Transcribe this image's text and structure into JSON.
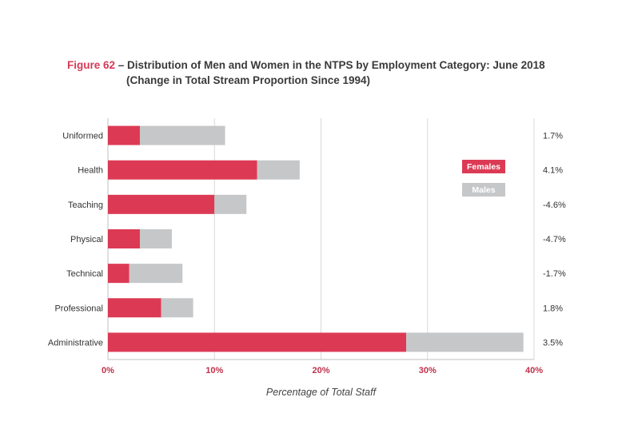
{
  "figure": {
    "number": "Figure 62",
    "title_line1": " – Distribution of Men and Women in the NTPS by Employment Category: June 2018",
    "title_line2": "(Change in Total Stream Proportion Since 1994)"
  },
  "chart_data": {
    "type": "bar",
    "orientation": "horizontal",
    "stacked": true,
    "categories": [
      "Uniformed",
      "Health",
      "Teaching",
      "Physical",
      "Technical",
      "Professional",
      "Administrative"
    ],
    "series": [
      {
        "name": "Females",
        "color": "#dc3a54",
        "values": [
          3,
          14,
          10,
          3,
          2,
          5,
          28
        ]
      },
      {
        "name": "Males",
        "color": "#c6c7c9",
        "values": [
          8,
          4,
          3,
          3,
          5,
          3,
          11
        ]
      }
    ],
    "change_labels": [
      "1.7%",
      "4.1%",
      "-4.6%",
      "-4.7%",
      "-1.7%",
      "1.8%",
      "3.5%"
    ],
    "xlim": [
      0,
      40
    ],
    "xticks": [
      0,
      10,
      20,
      30,
      40
    ],
    "xtick_labels": [
      "0%",
      "10%",
      "20%",
      "30%",
      "40%"
    ],
    "xlabel": "Percentage of Total Staff",
    "grid": "vertical",
    "legend": "top-right"
  }
}
